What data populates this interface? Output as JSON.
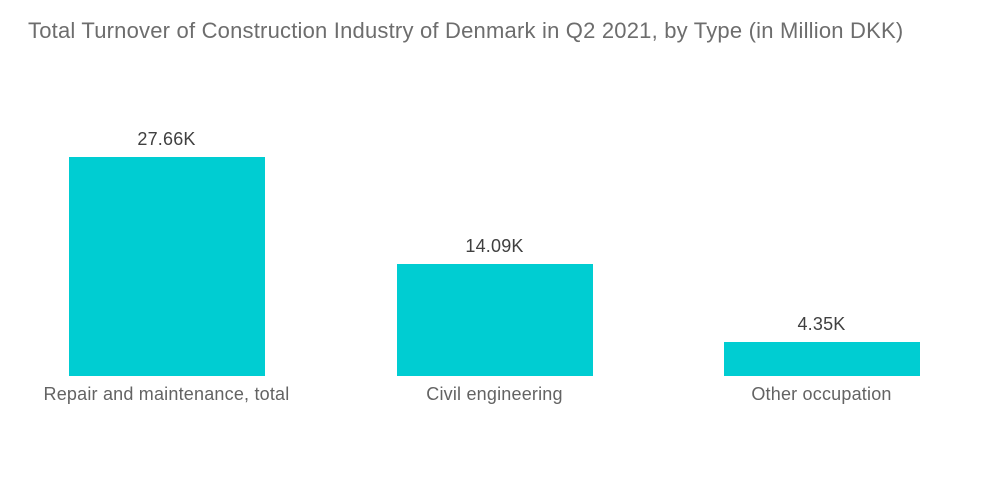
{
  "page": {
    "background": "#ffffff"
  },
  "header": {
    "title": "Total Turnover of Construction Industry of Denmark in Q2 2021, by Type (in Million DKK)"
  },
  "chart_data": {
    "type": "bar",
    "orientation": "vertical",
    "title": "Total Turnover of Construction Industry of Denmark in Q2 2021, by Type (in Million DKK)",
    "categories": [
      "Repair and maintenance, total",
      "Civil engineering",
      "Other occupation"
    ],
    "values": [
      27.66,
      14.09,
      4.35
    ],
    "value_labels": [
      "27.66K",
      "14.09K",
      "4.35K"
    ],
    "unit": "K (thousand Million DKK)",
    "xlabel": "",
    "ylabel": "",
    "ylim": [
      0,
      27.66
    ],
    "grid": false,
    "legend": false,
    "axes_visible": false,
    "bar_color": "#00CDD2",
    "title_color": "#6d6d6d",
    "value_label_color": "#404040",
    "category_label_color": "#636363"
  }
}
